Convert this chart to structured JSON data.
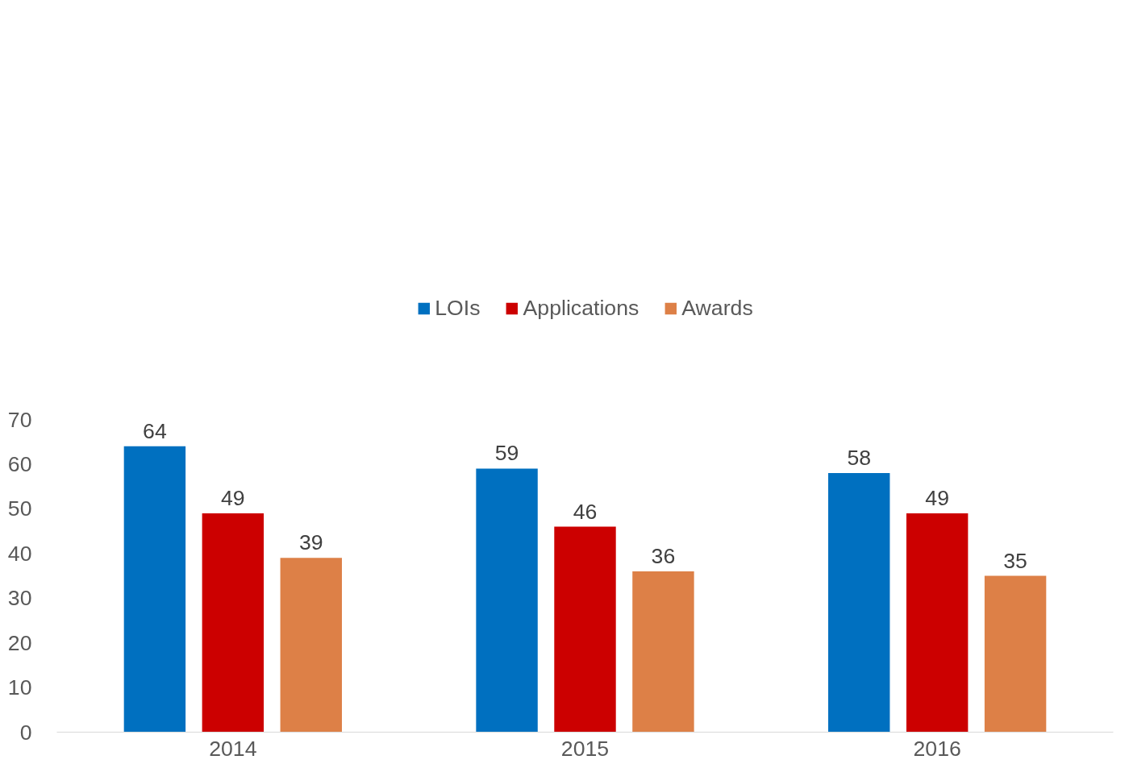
{
  "chart_data": {
    "type": "bar",
    "categories": [
      "2014",
      "2015",
      "2016"
    ],
    "series": [
      {
        "name": "LOIs",
        "color": "#0070c0",
        "values": [
          64,
          59,
          58
        ]
      },
      {
        "name": "Applications",
        "color": "#cc0000",
        "values": [
          49,
          46,
          49
        ]
      },
      {
        "name": "Awards",
        "color": "#dd8047",
        "values": [
          39,
          36,
          35
        ]
      }
    ],
    "ylim": [
      0,
      70
    ],
    "yticks": [
      0,
      10,
      20,
      30,
      40,
      50,
      60,
      70
    ],
    "data_labels": true,
    "legend": "top",
    "grid": false
  }
}
